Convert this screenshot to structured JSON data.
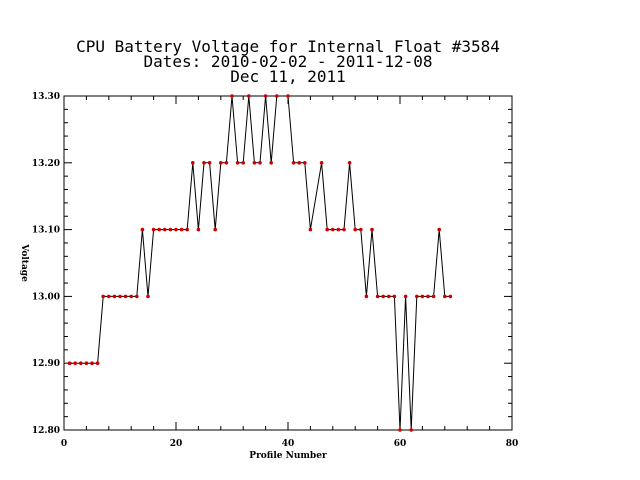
{
  "chart_data": {
    "type": "line",
    "title_lines": [
      "CPU Battery Voltage for Internal Float #3584",
      "Dates:  2010-02-02 -  2011-12-08",
      "Dec 11, 2011"
    ],
    "xlabel": "Profile Number",
    "ylabel": "Voltage",
    "xlim": [
      0,
      80
    ],
    "ylim": [
      12.8,
      13.3
    ],
    "x_ticks": [
      0,
      20,
      40,
      60,
      80
    ],
    "x_tick_labels": [
      "0",
      "20",
      "40",
      "60",
      "80"
    ],
    "y_ticks": [
      12.8,
      12.9,
      13.0,
      13.1,
      13.2,
      13.3
    ],
    "y_tick_labels": [
      "12.80",
      "12.90",
      "13.00",
      "13.10",
      "13.20",
      "13.30"
    ],
    "series": [
      {
        "line_color": "#000000",
        "marker_color": "#cc0000",
        "x": [
          1,
          2,
          3,
          4,
          5,
          6,
          7,
          8,
          9,
          10,
          11,
          12,
          13,
          14,
          15,
          16,
          17,
          18,
          19,
          20,
          21,
          22,
          23,
          24,
          25,
          26,
          27,
          28,
          29,
          30,
          31,
          32,
          33,
          34,
          35,
          36,
          37,
          38,
          40,
          41,
          42,
          43,
          44,
          46,
          47,
          48,
          49,
          50,
          51,
          52,
          53,
          54,
          55,
          56,
          57,
          58,
          59,
          60,
          61,
          62,
          63,
          64,
          65,
          66,
          67,
          68,
          69
        ],
        "y": [
          12.9,
          12.9,
          12.9,
          12.9,
          12.9,
          12.9,
          13.0,
          13.0,
          13.0,
          13.0,
          13.0,
          13.0,
          13.0,
          13.1,
          13.0,
          13.1,
          13.1,
          13.1,
          13.1,
          13.1,
          13.1,
          13.1,
          13.2,
          13.1,
          13.2,
          13.2,
          13.1,
          13.2,
          13.2,
          13.3,
          13.2,
          13.2,
          13.3,
          13.2,
          13.2,
          13.3,
          13.2,
          13.3,
          13.3,
          13.2,
          13.2,
          13.2,
          13.1,
          13.2,
          13.1,
          13.1,
          13.1,
          13.1,
          13.2,
          13.1,
          13.1,
          13.0,
          13.1,
          13.0,
          13.0,
          13.0,
          13.0,
          12.8,
          13.0,
          12.8,
          13.0,
          13.0,
          13.0,
          13.0,
          13.1,
          13.0,
          13.0
        ]
      }
    ]
  }
}
